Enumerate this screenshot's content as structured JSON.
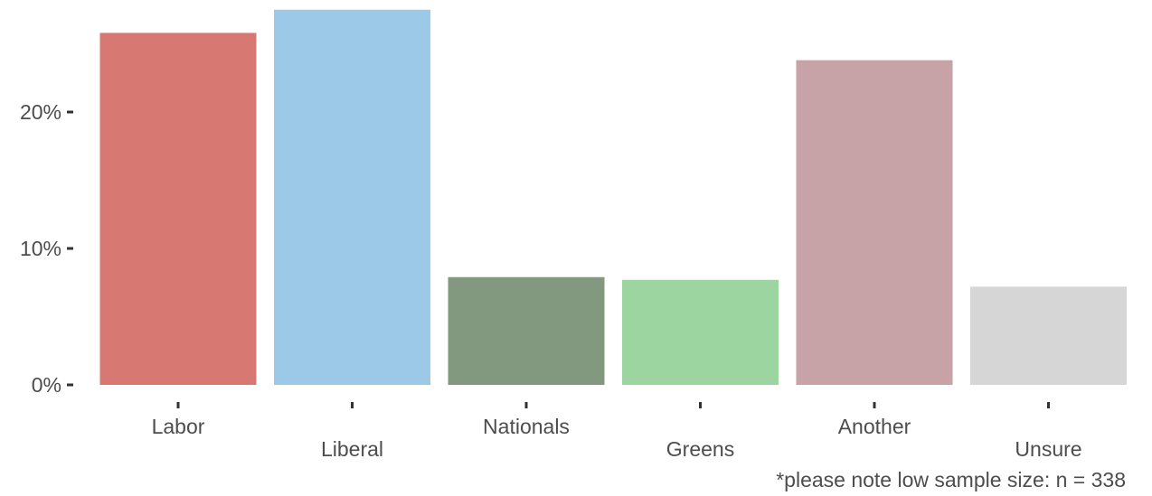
{
  "chart_data": {
    "type": "bar",
    "categories": [
      "Labor",
      "Liberal",
      "Nationals",
      "Greens",
      "Another",
      "Unsure"
    ],
    "values": [
      25.8,
      27.5,
      7.9,
      7.7,
      23.8,
      7.2
    ],
    "colors": [
      "#d77872",
      "#9dc9e8",
      "#83997f",
      "#9dd5a1",
      "#c7a2a7",
      "#d6d6d6"
    ],
    "y_ticks": [
      {
        "value": 0,
        "label": "0%"
      },
      {
        "value": 10,
        "label": "10%"
      },
      {
        "value": 20,
        "label": "20%"
      }
    ],
    "ylim": [
      0,
      28
    ],
    "grid": false,
    "legend": "none",
    "title": "",
    "xlabel": "",
    "ylabel": "",
    "note": "*please note low sample size: n = 338"
  }
}
